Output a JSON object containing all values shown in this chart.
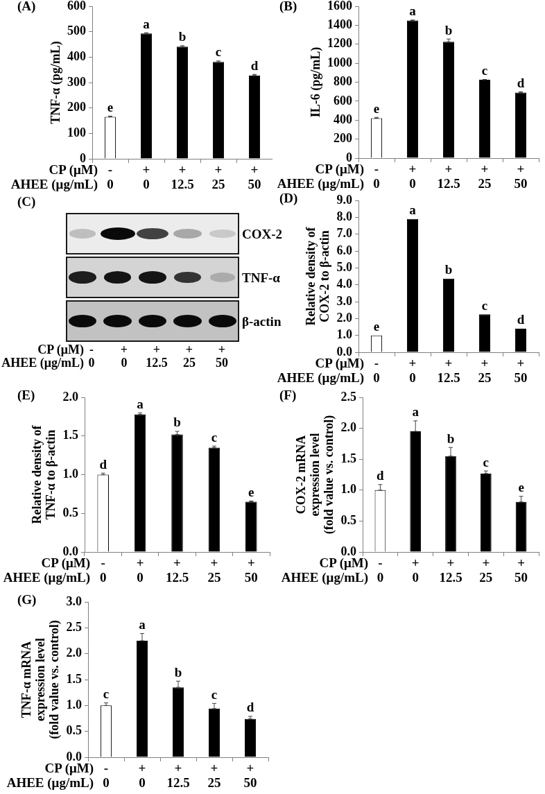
{
  "chart_data": [
    {
      "type": "bar",
      "title": "(A)",
      "ylabel": "TNF-α (pg/mL)",
      "xlabel": "CP (μM)\nAHEE (μg/mL)",
      "categories": [
        "-\n0",
        "+\n0",
        "+\n12.5",
        "+\n25",
        "+\n50"
      ],
      "values": [
        165,
        493,
        441,
        381,
        328
      ],
      "errors": [
        [
          165,
          168
        ],
        [
          493,
          496
        ],
        [
          441,
          445
        ],
        [
          381,
          385
        ],
        [
          328,
          332
        ]
      ],
      "value_labels": [
        "e",
        "a",
        "b",
        "c",
        "d"
      ],
      "colors": [
        "#ffffff",
        "#000000",
        "#000000",
        "#000000",
        "#000000"
      ],
      "ylim": [
        0,
        600
      ],
      "yticks": [
        0,
        100,
        200,
        300,
        400,
        500,
        600
      ]
    },
    {
      "type": "bar",
      "title": "(B)",
      "ylabel": "IL-6 (pg/mL)",
      "xlabel": "CP (μM)\nAHEE (μg/mL)",
      "categories": [
        "-\n0",
        "+\n0",
        "+\n12.5",
        "+\n25",
        "+\n50"
      ],
      "values": [
        420,
        1450,
        1225,
        825,
        690
      ],
      "errors": [
        [
          420,
          429
        ],
        [
          1450,
          1455
        ],
        [
          1225,
          1255
        ],
        [
          825,
          829
        ],
        [
          690,
          699
        ]
      ],
      "value_labels": [
        "e",
        "a",
        "b",
        "c",
        "d"
      ],
      "colors": [
        "#ffffff",
        "#000000",
        "#000000",
        "#000000",
        "#000000"
      ],
      "ylim": [
        0,
        1600
      ],
      "yticks": [
        0,
        200,
        400,
        600,
        800,
        1000,
        1200,
        1400,
        1600
      ]
    },
    {
      "type": "other",
      "title": "(C)",
      "annotations": [
        "COX-2",
        "TNF-α",
        "β-actin"
      ],
      "categories": [
        "-\n0",
        "+\n0",
        "+\n12.5",
        "+\n25",
        "+\n50"
      ],
      "xlabel": "CP (μM)\nAHEE (μg/mL)"
    },
    {
      "type": "bar",
      "title": "(D)",
      "ylabel": "Relative density of\nCOX-2 to β-actin",
      "xlabel": "CP (μM)\nAHEE (μg/mL)",
      "categories": [
        "-\n0",
        "+\n0",
        "+\n12.5",
        "+\n25",
        "+\n50"
      ],
      "values": [
        1.0,
        7.9,
        4.37,
        2.25,
        1.4
      ],
      "value_labels": [
        "e",
        "a",
        "b",
        "c",
        "d"
      ],
      "colors": [
        "#ffffff",
        "#000000",
        "#000000",
        "#000000",
        "#000000"
      ],
      "ylim": [
        0,
        9
      ],
      "yticks": [
        {
          "value": 0,
          "label": "0.0"
        },
        {
          "value": 1,
          "label": "1.0"
        },
        {
          "value": 2,
          "label": "2.0"
        },
        {
          "value": 3,
          "label": "3.0"
        },
        {
          "value": 4,
          "label": "4.0"
        },
        {
          "value": 5,
          "label": "5.0"
        },
        {
          "value": 6,
          "label": "6.0"
        },
        {
          "value": 7,
          "label": "7.0"
        },
        {
          "value": 8,
          "label": "8.0"
        },
        {
          "value": 9,
          "label": "9.0"
        }
      ]
    },
    {
      "type": "bar",
      "title": "(E)",
      "ylabel": "Relative density of\nTNF-α to β-actin",
      "xlabel": "CP (μM)\nAHEE (μg/mL)",
      "categories": [
        "-\n0",
        "+\n0",
        "+\n12.5",
        "+\n25",
        "+\n50"
      ],
      "values": [
        1.0,
        1.78,
        1.52,
        1.35,
        0.65
      ],
      "errors": [
        [
          1.0,
          1.02
        ],
        [
          1.78,
          1.8
        ],
        [
          1.52,
          1.56
        ],
        [
          1.35,
          1.37
        ],
        [
          0.65,
          0.66
        ]
      ],
      "value_labels": [
        "d",
        "a",
        "b",
        "c",
        "e"
      ],
      "colors": [
        "#ffffff",
        "#000000",
        "#000000",
        "#000000",
        "#000000"
      ],
      "ylim": [
        0,
        2
      ],
      "yticks": [
        {
          "value": 0,
          "label": "0.0"
        },
        0.5,
        {
          "value": 1,
          "label": "1.0"
        },
        1.5,
        {
          "value": 2,
          "label": "2.0"
        }
      ]
    },
    {
      "type": "bar",
      "title": "(F)",
      "ylabel": "COX-2 mRNA\nexpression level\n(fold value vs. control)",
      "xlabel": "CP (μM)\nAHEE (μg/mL)",
      "categories": [
        "-\n0",
        "+\n0",
        "+\n12.5",
        "+\n25",
        "+\n50"
      ],
      "values": [
        1.0,
        1.95,
        1.55,
        1.27,
        0.81
      ],
      "errors": [
        [
          1.0,
          1.09
        ],
        [
          1.95,
          2.12
        ],
        [
          1.55,
          1.69
        ],
        [
          1.27,
          1.31
        ],
        [
          0.81,
          0.9
        ]
      ],
      "value_labels": [
        "d",
        "a",
        "b",
        "c",
        "e"
      ],
      "colors": [
        "#ffffff",
        "#000000",
        "#000000",
        "#000000",
        "#000000"
      ],
      "ylim": [
        0,
        2.5
      ],
      "yticks": [
        {
          "value": 0,
          "label": "0.0"
        },
        0.5,
        {
          "value": 1,
          "label": "1.0"
        },
        1.5,
        {
          "value": 2,
          "label": "2.0"
        },
        2.5
      ]
    },
    {
      "type": "bar",
      "title": "(G)",
      "ylabel": "TNF-α mRNA\nexpression level\n(fold value vs. control)",
      "xlabel": "CP (μM)\nAHEE (μg/mL)",
      "categories": [
        "-\n0",
        "+\n0",
        "+\n12.5",
        "+\n25",
        "+\n50"
      ],
      "values": [
        1.0,
        2.25,
        1.35,
        0.94,
        0.74
      ],
      "errors": [
        [
          1.0,
          1.05
        ],
        [
          2.25,
          2.39
        ],
        [
          1.35,
          1.47
        ],
        [
          0.94,
          1.04
        ],
        [
          0.74,
          0.79
        ]
      ],
      "value_labels": [
        "c",
        "a",
        "b",
        "c",
        "d"
      ],
      "colors": [
        "#ffffff",
        "#000000",
        "#000000",
        "#000000",
        "#000000"
      ],
      "ylim": [
        0,
        3
      ],
      "yticks": [
        {
          "value": 0,
          "label": "0.0"
        },
        0.5,
        {
          "value": 1,
          "label": "1.0"
        },
        1.5,
        {
          "value": 2,
          "label": "2.0"
        },
        2.5,
        {
          "value": 3,
          "label": "3.0"
        }
      ]
    }
  ]
}
